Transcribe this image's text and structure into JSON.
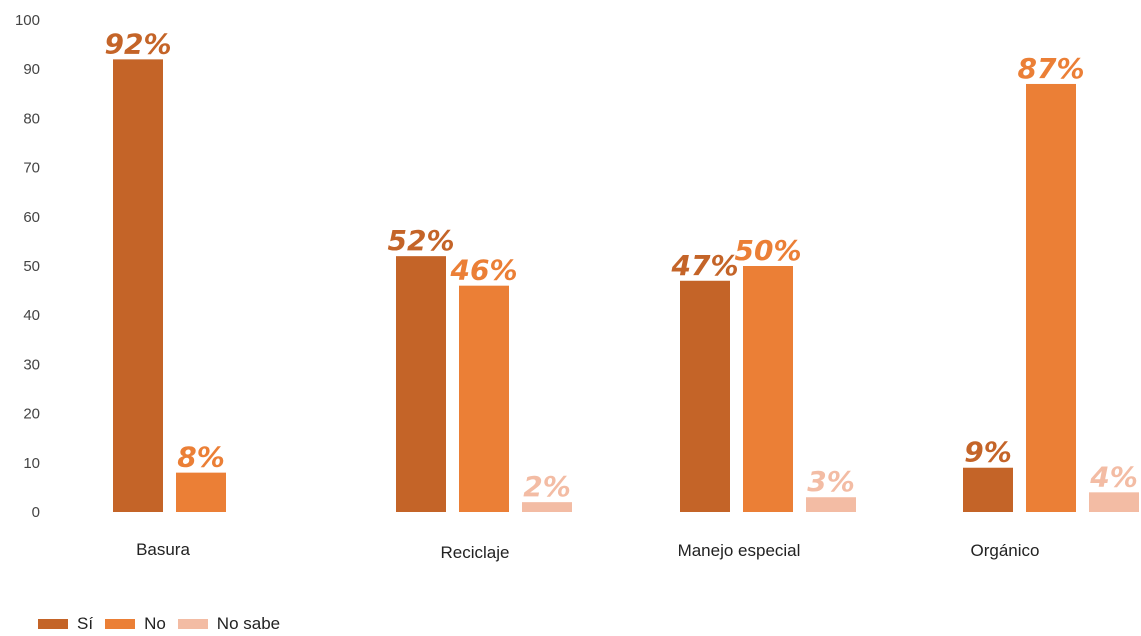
{
  "chart_data": {
    "type": "bar",
    "categories": [
      "Basura",
      "Reciclaje",
      "Manejo especial",
      "Orgánico"
    ],
    "ylim": [
      0,
      100
    ],
    "yticks": [
      0,
      10,
      20,
      30,
      40,
      50,
      60,
      70,
      80,
      90,
      100
    ],
    "grid": false,
    "legend_position": "bottom-left",
    "series": [
      {
        "name": "Sí",
        "color": "#C46428",
        "values": [
          92,
          52,
          47,
          9
        ],
        "labels": [
          "92%",
          "52%",
          "47%",
          "9%"
        ]
      },
      {
        "name": "No",
        "color": "#EB7F36",
        "values": [
          8,
          46,
          50,
          87
        ],
        "labels": [
          "8%",
          "46%",
          "50%",
          "87%"
        ]
      },
      {
        "name": "No sabe",
        "color": "#F3BCA4",
        "values": [
          null,
          2,
          3,
          4
        ],
        "labels": [
          null,
          "2%",
          "3%",
          "4%"
        ]
      }
    ]
  }
}
